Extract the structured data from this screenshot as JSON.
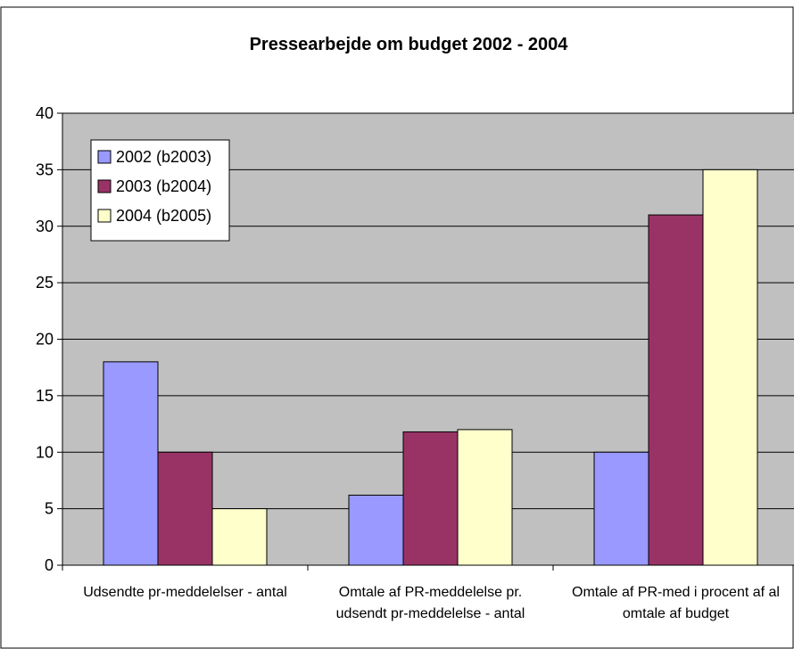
{
  "chart_data": {
    "type": "bar",
    "title": "Pressearbejde om budget 2002 - 2004",
    "xlabel": "",
    "ylabel": "",
    "ylim": [
      0,
      40
    ],
    "yticks": [
      "0",
      "5",
      "10",
      "15",
      "20",
      "25",
      "30",
      "35",
      "40"
    ],
    "grid": true,
    "legend_position": "top-left",
    "categories": [
      [
        "Udsendte pr-meddelelser - antal"
      ],
      [
        "Omtale af PR-meddelelse pr.",
        "udsendt pr-meddelelse - antal"
      ],
      [
        "Omtale af PR-med i procent af al",
        "omtale af budget"
      ]
    ],
    "series": [
      {
        "name": "2002 (b2003)",
        "color": "#9999ff",
        "values": [
          18,
          6.2,
          10
        ]
      },
      {
        "name": "2003 (b2004)",
        "color": "#993366",
        "values": [
          10,
          11.8,
          31
        ]
      },
      {
        "name": "2004 (b2005)",
        "color": "#ffffcc",
        "values": [
          5,
          12,
          35
        ]
      }
    ],
    "plot_background": "#c0c0c0"
  }
}
